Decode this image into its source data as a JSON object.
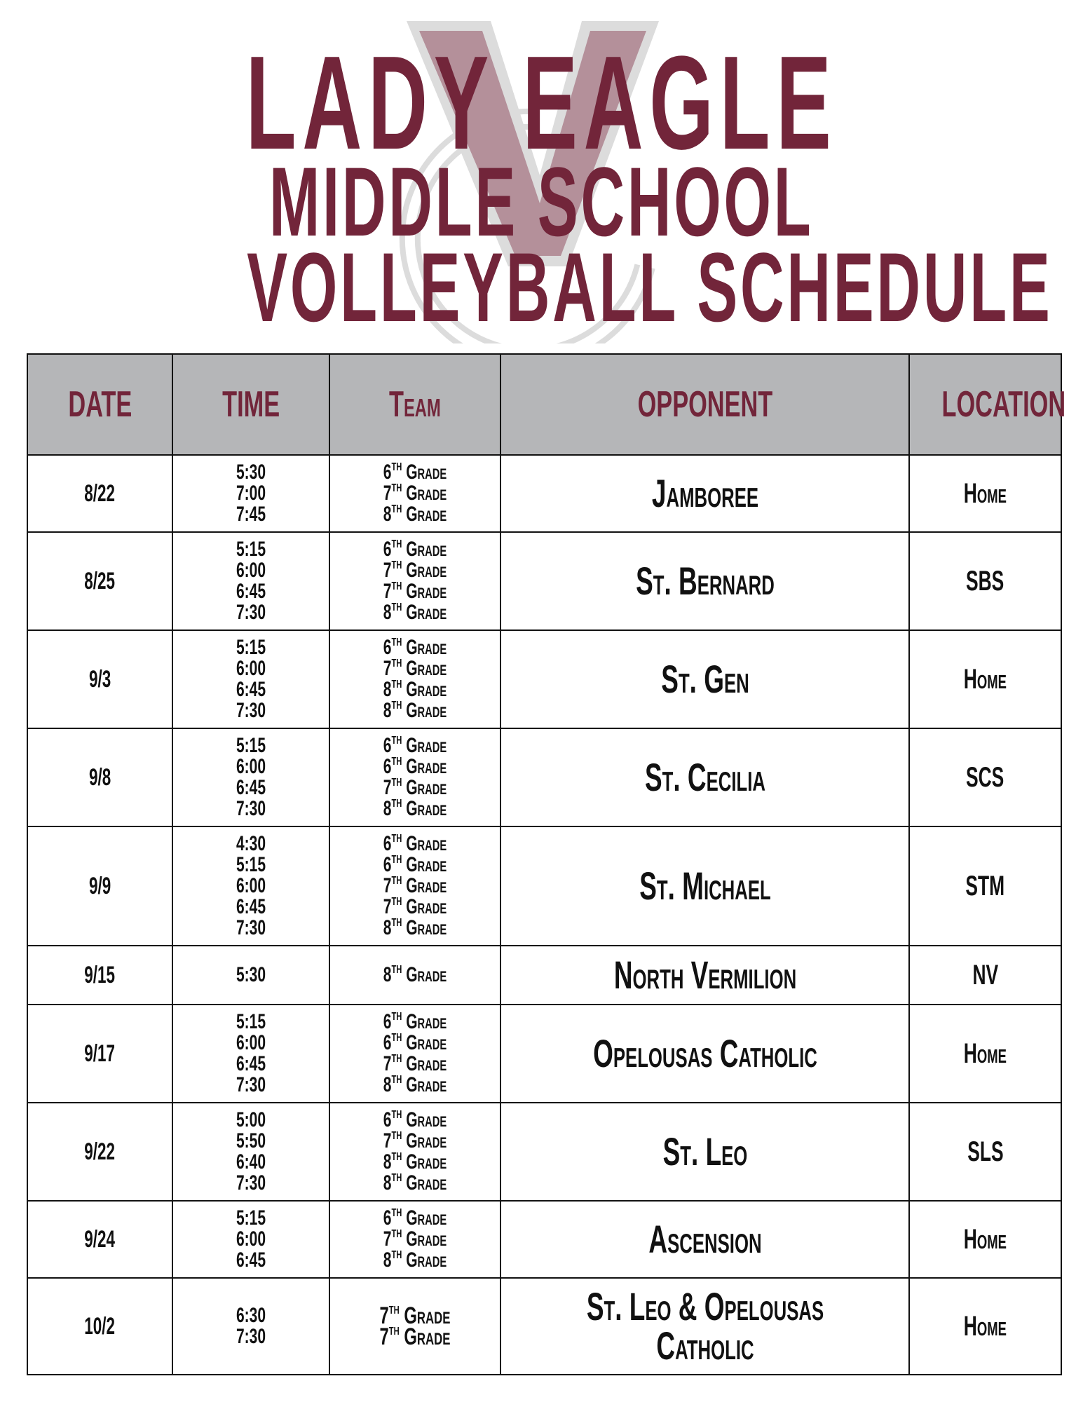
{
  "title": {
    "line1": "LADY EAGLE",
    "line2": "MIDDLE SCHOOL",
    "line3": "VOLLEYBALL SCHEDULE"
  },
  "colors": {
    "maroon": "#72253a",
    "header_bg": "#b5b6b8",
    "logo_fill": "#b4909a",
    "logo_outline": "#dcdcdc"
  },
  "headers": [
    "DATE",
    "TIME",
    "Team",
    "OPPONENT",
    "LOCATION"
  ],
  "rows": [
    {
      "date": "8/22",
      "times": [
        "5:30",
        "7:00",
        "7:45"
      ],
      "teams": [
        "6th Grade",
        "7th Grade",
        "8th Grade"
      ],
      "opponent": "Jamboree",
      "location": "Home"
    },
    {
      "date": "8/25",
      "times": [
        "5:15",
        "6:00",
        "6:45",
        "7:30"
      ],
      "teams": [
        "6th Grade",
        "7th Grade",
        "7th Grade",
        "8th Grade"
      ],
      "opponent": "St. Bernard",
      "location": "SBS"
    },
    {
      "date": "9/3",
      "times": [
        "5:15",
        "6:00",
        "6:45",
        "7:30"
      ],
      "teams": [
        "6th Grade",
        "7th Grade",
        "8th Grade",
        "8th Grade"
      ],
      "opponent": "St. Gen",
      "location": "Home"
    },
    {
      "date": "9/8",
      "times": [
        "5:15",
        "6:00",
        "6:45",
        "7:30"
      ],
      "teams": [
        "6th Grade",
        "6th Grade",
        "7th Grade",
        "8th Grade"
      ],
      "opponent": "St. Cecilia",
      "location": "SCS"
    },
    {
      "date": "9/9",
      "times": [
        "4:30",
        "5:15",
        "6:00",
        "6:45",
        "7:30"
      ],
      "teams": [
        "6th Grade",
        "6th Grade",
        "7th Grade",
        "7th Grade",
        "8th Grade"
      ],
      "opponent": "St. Michael",
      "location": "STM"
    },
    {
      "date": "9/15",
      "times": [
        "5:30"
      ],
      "teams": [
        "8th Grade"
      ],
      "opponent": "North Vermilion",
      "location": "NV"
    },
    {
      "date": "9/17",
      "times": [
        "5:15",
        "6:00",
        "6:45",
        "7:30"
      ],
      "teams": [
        "6th Grade",
        "6th Grade",
        "7th Grade",
        "8th Grade"
      ],
      "opponent": "Opelousas Catholic",
      "location": "Home"
    },
    {
      "date": "9/22",
      "times": [
        "5:00",
        "5:50",
        "6:40",
        "7:30"
      ],
      "teams": [
        "6th Grade",
        "7th Grade",
        "8th Grade",
        "8th Grade"
      ],
      "opponent": "St. Leo",
      "location": "SLS"
    },
    {
      "date": "9/24",
      "times": [
        "5:15",
        "6:00",
        "6:45"
      ],
      "teams": [
        "6th Grade",
        "7th Grade",
        "8th Grade"
      ],
      "opponent": "Ascension",
      "location": "Home"
    },
    {
      "date": "10/2",
      "times": [
        "6:30",
        "7:30"
      ],
      "teams": [
        "7th Grade",
        "7th Grade"
      ],
      "opponent": "St. Leo & Opelousas Catholic",
      "location": "Home"
    }
  ]
}
